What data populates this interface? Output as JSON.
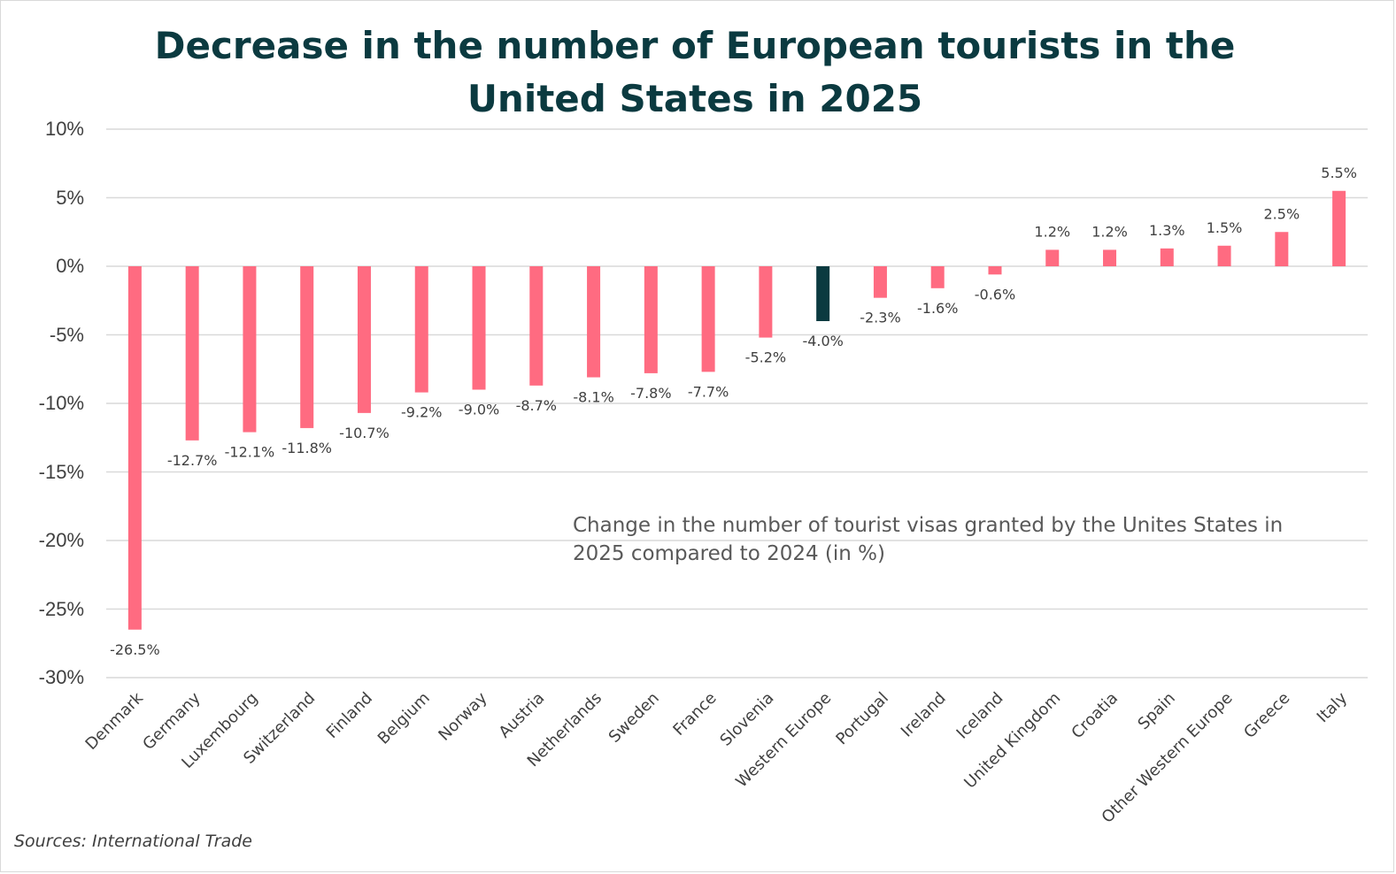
{
  "chart_data": {
    "type": "bar",
    "title": "Decrease in the number of European tourists in the United States in 2025",
    "annotation": "Change in the number of tourist visas granted by the Unites States in 2025 compared to 2024 (in %)",
    "source": "Sources: International Trade",
    "ylim": [
      -30,
      10
    ],
    "yticks": [
      10,
      5,
      0,
      -5,
      -10,
      -15,
      -20,
      -25,
      -30
    ],
    "ytick_labels": [
      "10%",
      "5%",
      "0%",
      "-5%",
      "-10%",
      "-15%",
      "-20%",
      "-25%",
      "-30%"
    ],
    "grid": true,
    "categories": [
      "Denmark",
      "Germany",
      "Luxembourg",
      "Switzerland",
      "Finland",
      "Belgium",
      "Norway",
      "Austria",
      "Netherlands",
      "Sweden",
      "France",
      "Slovenia",
      "Western Europe",
      "Portugal",
      "Ireland",
      "Iceland",
      "United Kingdom",
      "Croatia",
      "Spain",
      "Other Western Europe",
      "Greece",
      "Italy"
    ],
    "values": [
      -26.5,
      -12.7,
      -12.1,
      -11.8,
      -10.7,
      -9.2,
      -9.0,
      -8.7,
      -8.1,
      -7.8,
      -7.7,
      -5.2,
      -4.0,
      -2.3,
      -1.6,
      -0.6,
      1.2,
      1.2,
      1.3,
      1.5,
      2.5,
      5.5
    ],
    "data_labels": [
      "-26.5%",
      "-12.7%",
      "-12.1%",
      "-11.8%",
      "-10.7%",
      "-9.2%",
      "-9.0%",
      "-8.7%",
      "-8.1%",
      "-7.8%",
      "-7.7%",
      "-5.2%",
      "-4.0%",
      "-2.3%",
      "-1.6%",
      "-0.6%",
      "1.2%",
      "1.2%",
      "1.3%",
      "1.5%",
      "2.5%",
      "5.5%"
    ],
    "highlight_category": "Western Europe",
    "colors": {
      "bar": "#ff6b81",
      "highlight": "#0b3a40",
      "grid": "#d9d9d9",
      "title": "#0b3a40"
    }
  }
}
